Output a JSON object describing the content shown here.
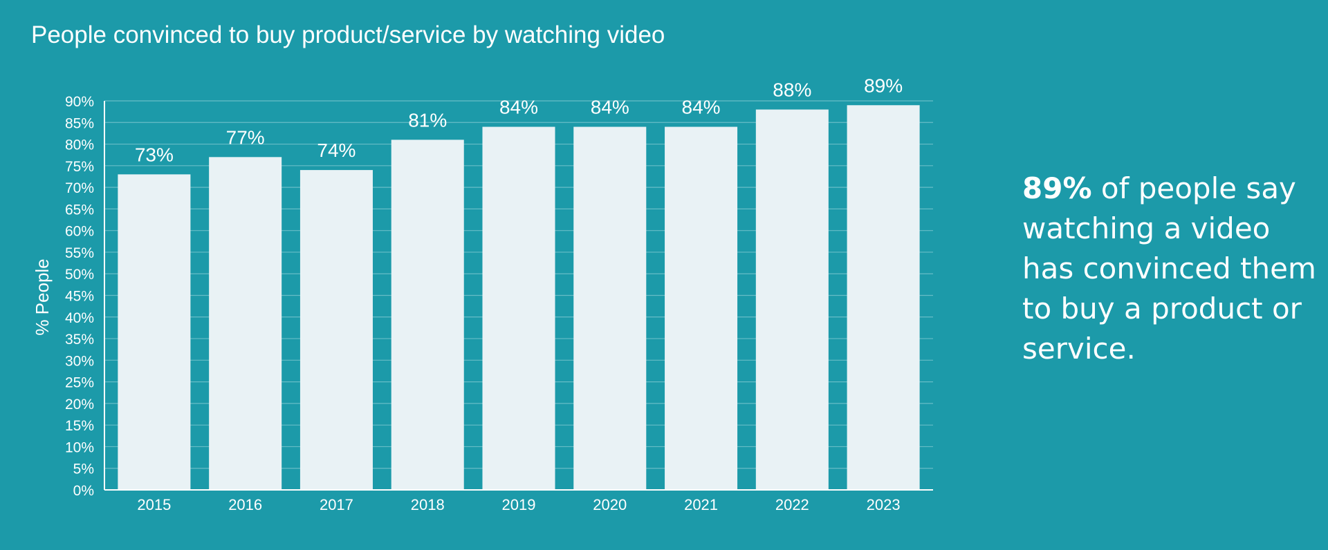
{
  "chart_data": {
    "type": "bar",
    "title": "People convinced to buy product/service by watching video",
    "ylabel": "% People",
    "xlabel": "",
    "categories": [
      "2015",
      "2016",
      "2017",
      "2018",
      "2019",
      "2020",
      "2021",
      "2022",
      "2023"
    ],
    "values": [
      73,
      77,
      74,
      81,
      84,
      84,
      84,
      88,
      89
    ],
    "data_labels": [
      "73%",
      "77%",
      "74%",
      "81%",
      "84%",
      "84%",
      "84%",
      "88%",
      "89%"
    ],
    "ylim": [
      0,
      90
    ],
    "y_ticks": [
      0,
      5,
      10,
      15,
      20,
      25,
      30,
      35,
      40,
      45,
      50,
      55,
      60,
      65,
      70,
      75,
      80,
      85,
      90
    ],
    "y_tick_labels": [
      "0%",
      "5%",
      "10%",
      "15%",
      "20%",
      "25%",
      "30%",
      "35%",
      "40%",
      "45%",
      "50%",
      "55%",
      "60%",
      "65%",
      "70%",
      "75%",
      "80%",
      "85%",
      "90%"
    ],
    "grid": true,
    "colors": {
      "background": "#1c9aa9",
      "bar": "#e9f2f5",
      "text": "#ffffff",
      "grid": "#67bdc7"
    }
  },
  "callout": {
    "highlight": "89%",
    "text": " of people say watching a video has convinced them to buy a product or service."
  }
}
